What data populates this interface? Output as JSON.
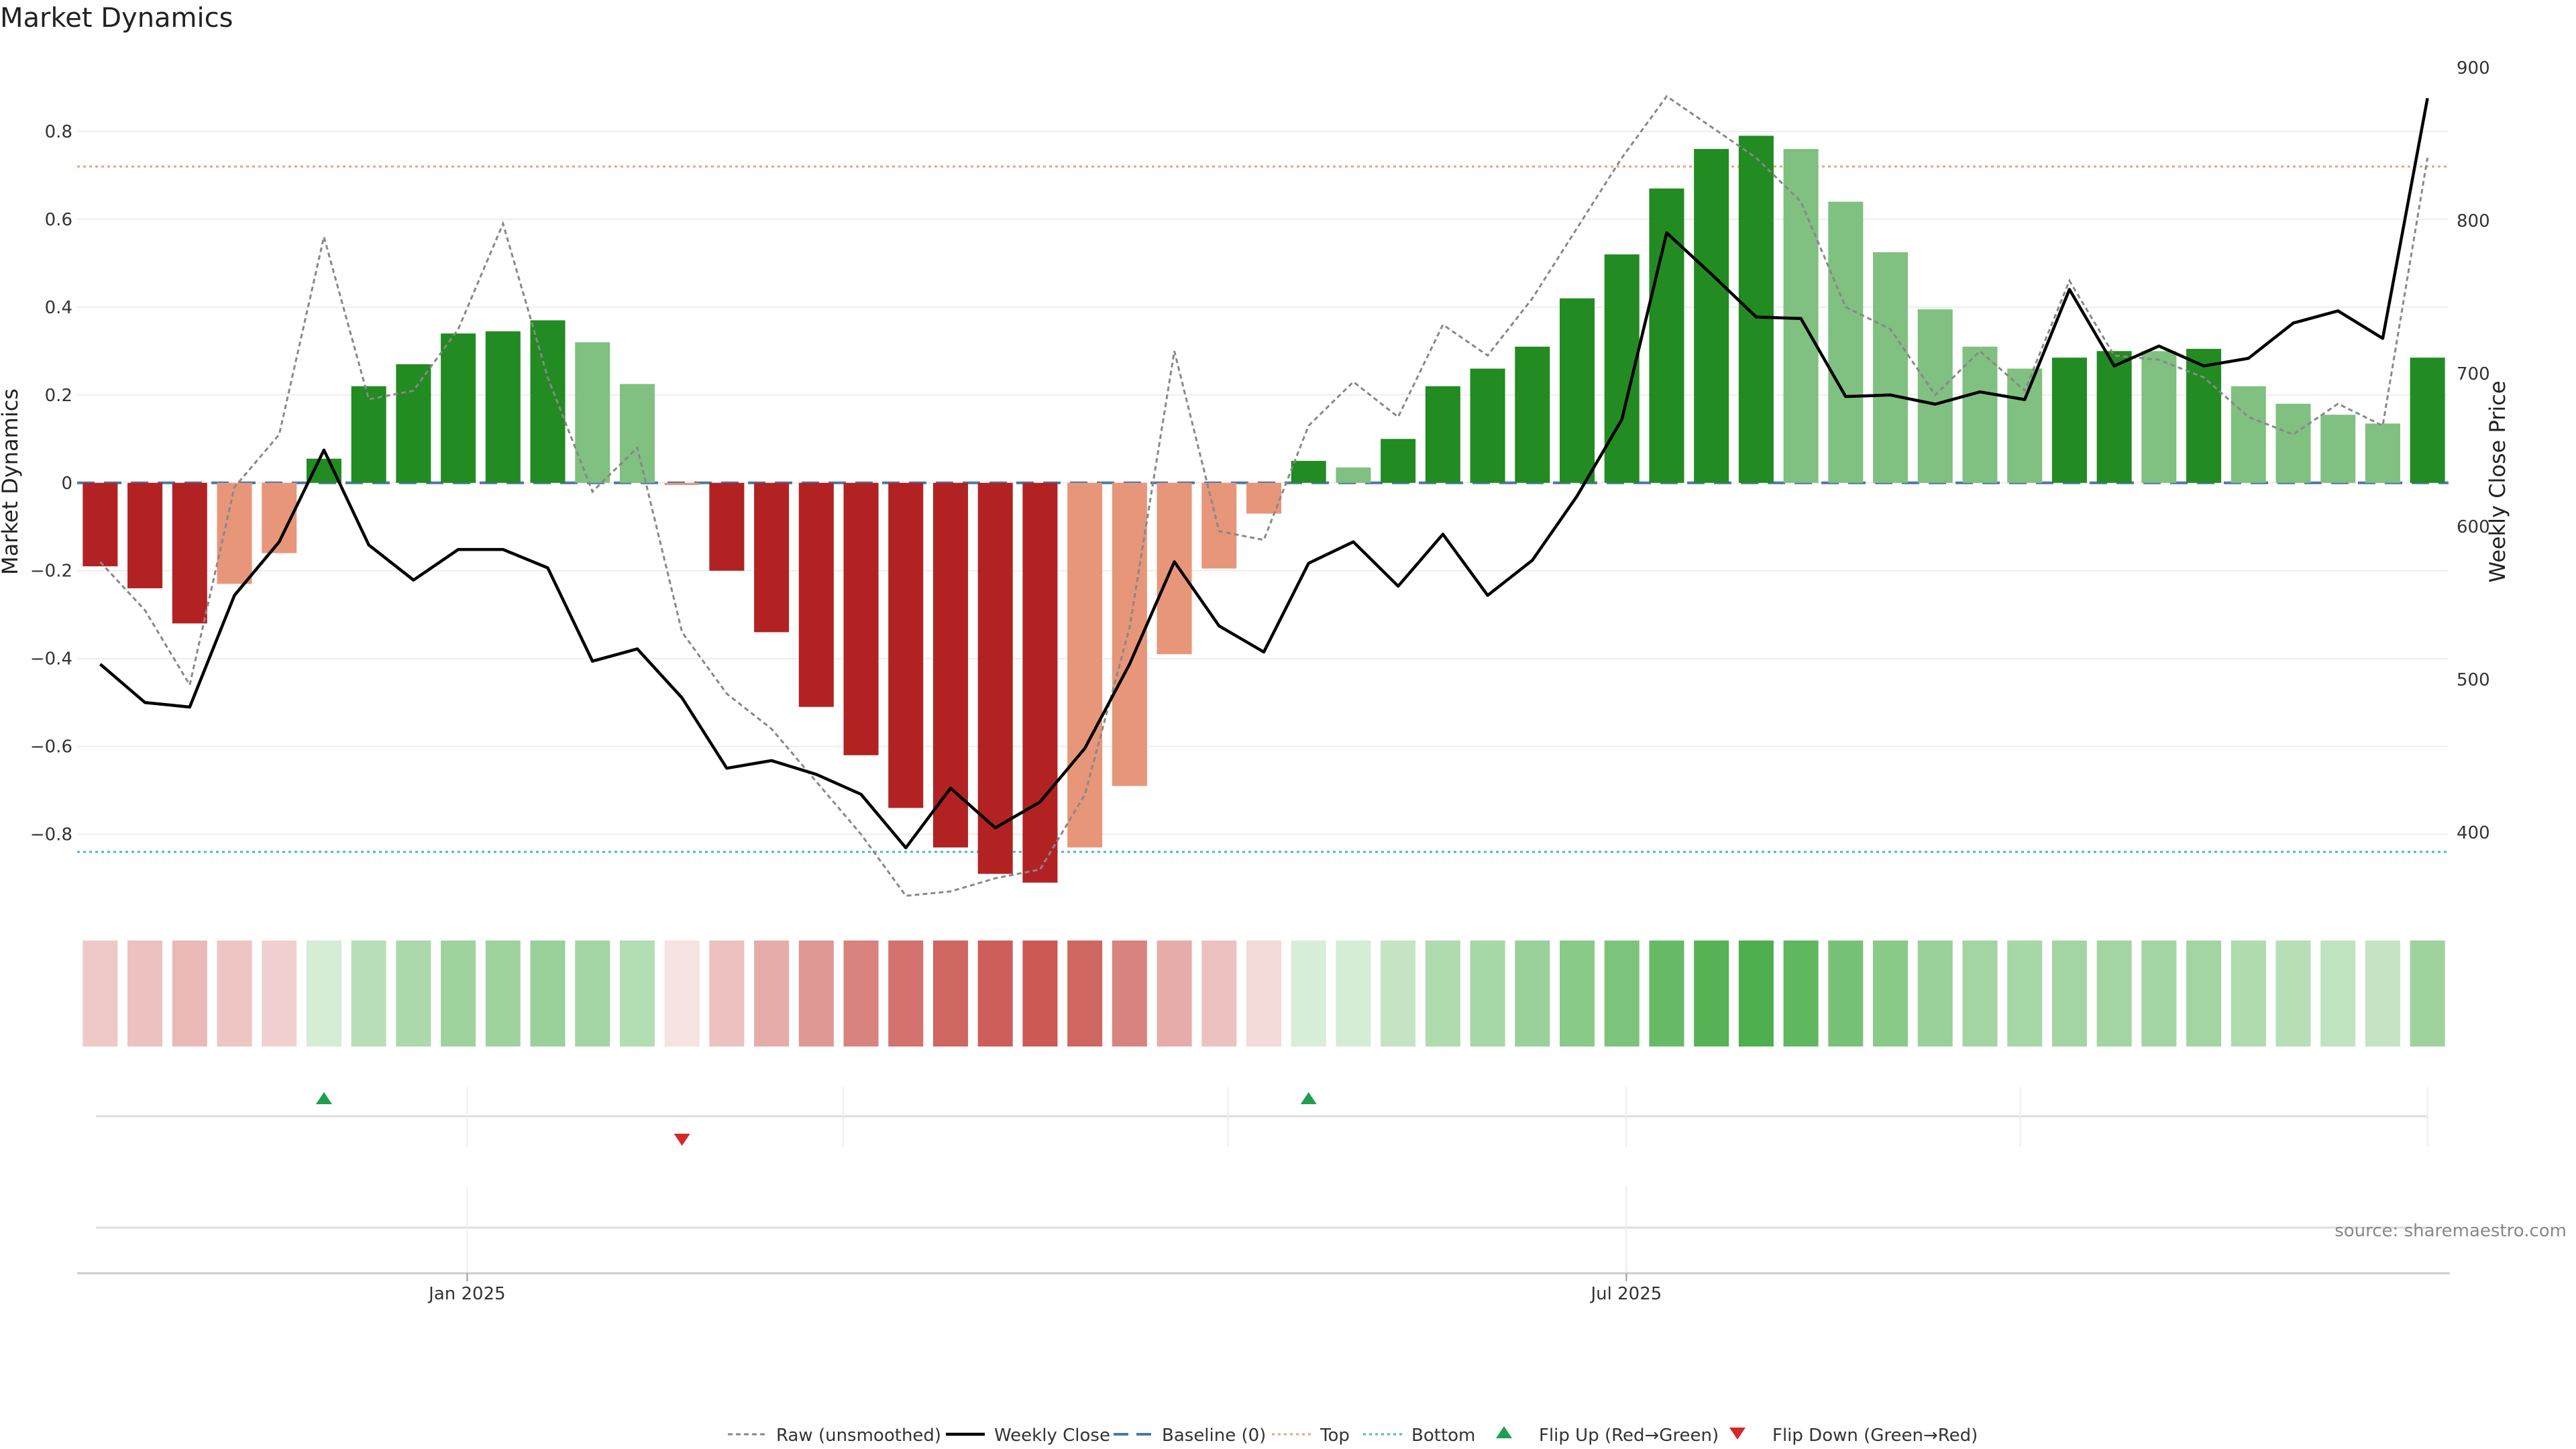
{
  "chart_data": {
    "type": "bar",
    "title": "Market Dynamics",
    "ylabel_left": "Market Dynamics",
    "ylabel_right": "Weekly Close Price",
    "left_ylim": [
      -0.97,
      0.98
    ],
    "right_ylim": [
      350,
      910
    ],
    "left_yticks": [
      -0.8,
      -0.6,
      -0.4,
      -0.2,
      0,
      0.2,
      0.4,
      0.6,
      0.8
    ],
    "left_ytick_labels": [
      "−0.8",
      "−0.6",
      "−0.4",
      "−0.2",
      "0",
      "0.2",
      "0.4",
      "0.6",
      "0.8"
    ],
    "right_yticks": [
      400,
      500,
      600,
      700,
      800,
      900
    ],
    "right_ytick_labels": [
      "400",
      "500",
      "600",
      "700",
      "800",
      "900"
    ],
    "x_tick_labels": [
      "Jan 2025",
      "Jul 2025"
    ],
    "x_tick_index": [
      8.7,
      34.6
    ],
    "top_line": 0.72,
    "bottom_line": -0.84,
    "baseline": 0,
    "grid": true,
    "legend_position": "bottom-center",
    "colors": {
      "strong_green": "#228b22",
      "light_green": "#80c080",
      "strong_red": "#b22222",
      "light_red": "#e8967a",
      "close_line": "#000000",
      "raw_line": "#888888",
      "baseline": "#4a78a8",
      "top": "#f0a080",
      "bottom": "#40b8d8",
      "flip_up": "#1f9e4f",
      "flip_down": "#d62728"
    },
    "bars": [
      -0.19,
      -0.24,
      -0.32,
      -0.23,
      -0.16,
      0.055,
      0.22,
      0.27,
      0.34,
      0.345,
      0.37,
      0.32,
      0.225,
      -0.005,
      -0.2,
      -0.34,
      -0.51,
      -0.62,
      -0.74,
      -0.83,
      -0.89,
      -0.91,
      -0.83,
      -0.69,
      -0.39,
      -0.195,
      -0.07,
      0.05,
      0.035,
      0.1,
      0.22,
      0.26,
      0.31,
      0.42,
      0.52,
      0.67,
      0.76,
      0.79,
      0.76,
      0.64,
      0.525,
      0.395,
      0.31,
      0.26,
      0.285,
      0.3,
      0.3,
      0.305,
      0.22,
      0.18,
      0.155,
      0.135,
      0.285
    ],
    "bar_shade": [
      "strong",
      "strong",
      "strong",
      "light",
      "light",
      "strong",
      "strong",
      "strong",
      "strong",
      "strong",
      "strong",
      "light",
      "light",
      "light",
      "strong",
      "strong",
      "strong",
      "strong",
      "strong",
      "strong",
      "strong",
      "strong",
      "light",
      "light",
      "light",
      "light",
      "light",
      "strong",
      "light",
      "strong",
      "strong",
      "strong",
      "strong",
      "strong",
      "strong",
      "strong",
      "strong",
      "strong",
      "light",
      "light",
      "light",
      "light",
      "light",
      "light",
      "strong",
      "strong",
      "light",
      "strong",
      "light",
      "light",
      "light",
      "light",
      "strong"
    ],
    "heat_intensity": [
      -0.26,
      -0.3,
      -0.34,
      -0.28,
      -0.22,
      0.2,
      0.34,
      0.4,
      0.46,
      0.46,
      0.48,
      0.44,
      0.36,
      -0.14,
      -0.3,
      -0.4,
      -0.5,
      -0.6,
      -0.68,
      -0.74,
      -0.78,
      -0.8,
      -0.74,
      -0.6,
      -0.4,
      -0.3,
      -0.18,
      0.18,
      0.2,
      0.28,
      0.38,
      0.42,
      0.48,
      0.56,
      0.62,
      0.72,
      0.8,
      0.84,
      0.76,
      0.64,
      0.56,
      0.48,
      0.44,
      0.42,
      0.44,
      0.44,
      0.44,
      0.44,
      0.38,
      0.34,
      0.3,
      0.28,
      0.46
    ],
    "weekly_close": [
      510,
      485,
      482,
      555,
      590,
      650,
      588,
      565,
      585,
      585,
      573,
      512,
      520,
      488,
      442,
      447,
      438,
      425,
      390,
      429,
      403,
      420,
      455,
      510,
      577,
      535,
      518,
      576,
      590,
      561,
      595,
      555,
      578,
      620,
      670,
      792,
      765,
      737,
      736,
      685,
      686,
      680,
      688,
      683,
      755,
      705,
      718,
      705,
      710,
      733,
      741,
      723,
      880
    ],
    "raw_unsmoothed": [
      -0.18,
      -0.29,
      -0.46,
      -0.01,
      0.11,
      0.56,
      0.19,
      0.21,
      0.35,
      0.59,
      0.24,
      -0.02,
      0.08,
      -0.34,
      -0.48,
      -0.56,
      -0.68,
      -0.8,
      -0.94,
      -0.93,
      -0.9,
      -0.88,
      -0.71,
      -0.33,
      0.3,
      -0.11,
      -0.13,
      0.13,
      0.23,
      0.15,
      0.36,
      0.29,
      0.42,
      0.58,
      0.74,
      0.88,
      0.81,
      0.74,
      0.64,
      0.4,
      0.35,
      0.2,
      0.3,
      0.21,
      0.46,
      0.29,
      0.28,
      0.24,
      0.15,
      0.11,
      0.18,
      0.13,
      0.74
    ],
    "flip_up_index": [
      5,
      27
    ],
    "flip_down_index": [
      13
    ],
    "legend": [
      "Raw (unsmoothed)",
      "Weekly Close",
      "Baseline (0)",
      "Top",
      "Bottom",
      "Flip Up (Red→Green)",
      "Flip Down (Green→Red)"
    ],
    "source": "source: sharemaestro.com"
  }
}
